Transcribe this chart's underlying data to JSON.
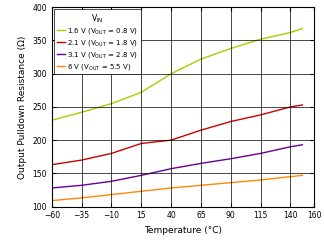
{
  "title": "",
  "xlabel": "Temperature (°C)",
  "ylabel": "Output Pulldown Resistance (Ω)",
  "xlim": [
    -60,
    160
  ],
  "ylim": [
    100,
    400
  ],
  "xticks": [
    -60,
    -35,
    -10,
    15,
    40,
    65,
    90,
    115,
    140,
    160
  ],
  "yticks": [
    100,
    150,
    200,
    250,
    300,
    350,
    400
  ],
  "series": [
    {
      "label": "1.6 V (V$_\\mathregular{OUT}$ = 0.8 V)",
      "color": "#aacc00",
      "x": [
        -60,
        -35,
        -10,
        15,
        40,
        65,
        90,
        115,
        140,
        150
      ],
      "y": [
        230,
        242,
        255,
        272,
        300,
        322,
        338,
        352,
        362,
        368
      ]
    },
    {
      "label": "2.1 V (V$_\\mathregular{OUT}$ = 1.8 V)",
      "color": "#cc0000",
      "x": [
        -60,
        -35,
        -10,
        15,
        40,
        65,
        90,
        115,
        140,
        150
      ],
      "y": [
        163,
        170,
        180,
        195,
        200,
        215,
        228,
        238,
        250,
        253
      ]
    },
    {
      "label": "3.1 V (V$_\\mathregular{OUT}$ = 2.8 V)",
      "color": "#660099",
      "x": [
        -60,
        -35,
        -10,
        15,
        40,
        65,
        90,
        115,
        140,
        150
      ],
      "y": [
        128,
        132,
        138,
        147,
        157,
        165,
        172,
        180,
        190,
        193
      ]
    },
    {
      "label": "6 V (V$_\\mathregular{OUT}$ = 5.5 V)",
      "color": "#ff8800",
      "x": [
        -60,
        -35,
        -10,
        15,
        40,
        65,
        90,
        115,
        140,
        150
      ],
      "y": [
        109,
        113,
        118,
        123,
        128,
        132,
        136,
        140,
        145,
        147
      ]
    }
  ],
  "legend_title": "V$_\\mathregular{IN}$",
  "background_color": "#ffffff",
  "grid_color": "#000000"
}
